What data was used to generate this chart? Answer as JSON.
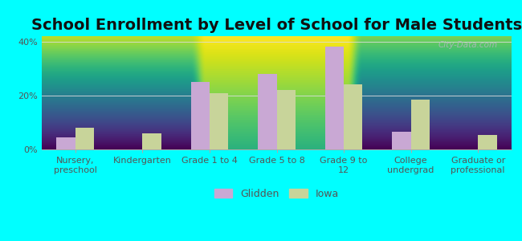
{
  "title": "School Enrollment by Level of School for Male Students",
  "categories": [
    "Nursery,\npreschool",
    "Kindergarten",
    "Grade 1 to 4",
    "Grade 5 to 8",
    "Grade 9 to\n12",
    "College\nundergrad",
    "Graduate or\nprofessional"
  ],
  "glidden_values": [
    4.5,
    0,
    25,
    28,
    38,
    6.5,
    0
  ],
  "iowa_values": [
    8,
    6,
    21,
    22,
    24,
    18.5,
    5.5
  ],
  "glidden_color": "#c9a8d4",
  "iowa_color": "#c8d49a",
  "background_color": "#00ffff",
  "plot_bg_top": "#f5faf0",
  "plot_bg_bottom": "#c8e8c8",
  "ylim": [
    0,
    42
  ],
  "yticks": [
    0,
    20,
    40
  ],
  "ytick_labels": [
    "0%",
    "20%",
    "40%"
  ],
  "title_fontsize": 14,
  "tick_fontsize": 8,
  "legend_fontsize": 9,
  "bar_width": 0.28,
  "legend_labels": [
    "Glidden",
    "Iowa"
  ]
}
